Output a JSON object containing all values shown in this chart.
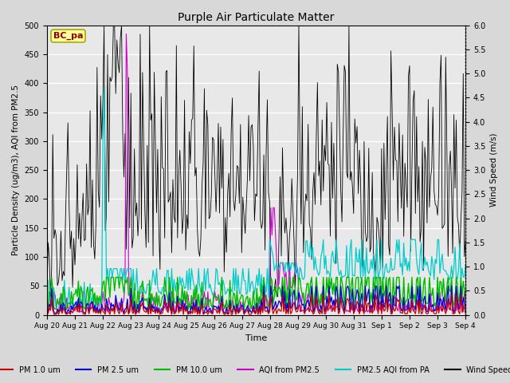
{
  "title": "Purple Air Particulate Matter",
  "xlabel": "Time",
  "ylabel_left": "Particle Density (ug/m3), AQI from PM2.5",
  "ylabel_right": "Wind Speed (m/s)",
  "ylim_left": [
    0,
    500
  ],
  "ylim_right": [
    0,
    6.0
  ],
  "annotation_text": "BC_pa",
  "annotation_color": "#8B0000",
  "annotation_bg": "#FFFF99",
  "annotation_border": "#AAAA00",
  "x_tick_labels": [
    "Aug 20",
    "Aug 21",
    "Aug 22",
    "Aug 23",
    "Aug 24",
    "Aug 25",
    "Aug 26",
    "Aug 27",
    "Aug 28",
    "Aug 29",
    "Aug 30",
    "Aug 31",
    "Sep 1",
    "Sep 2",
    "Sep 3",
    "Sep 4"
  ],
  "line_colors": {
    "pm1": "#CC0000",
    "pm25": "#0000CC",
    "pm10": "#00BB00",
    "aqi_pm25": "#CC00CC",
    "aqi_pa": "#00CCCC",
    "wind": "#000000"
  },
  "legend_labels": [
    "PM 1.0 um",
    "PM 2.5 um",
    "PM 10.0 um",
    "AQI from PM2.5",
    "PM2.5 AQI from PA",
    "Wind Speed"
  ],
  "background_color": "#D8D8D8",
  "plot_bg_color": "#E8E8E8",
  "n_points": 360,
  "grid_color": "#FFFFFF",
  "yticks_right": [
    0.0,
    0.5,
    1.0,
    1.5,
    2.0,
    2.5,
    3.0,
    3.5,
    4.0,
    4.5,
    5.0,
    5.5,
    6.0
  ],
  "yticks_left": [
    0,
    50,
    100,
    150,
    200,
    250,
    300,
    350,
    400,
    450,
    500
  ]
}
